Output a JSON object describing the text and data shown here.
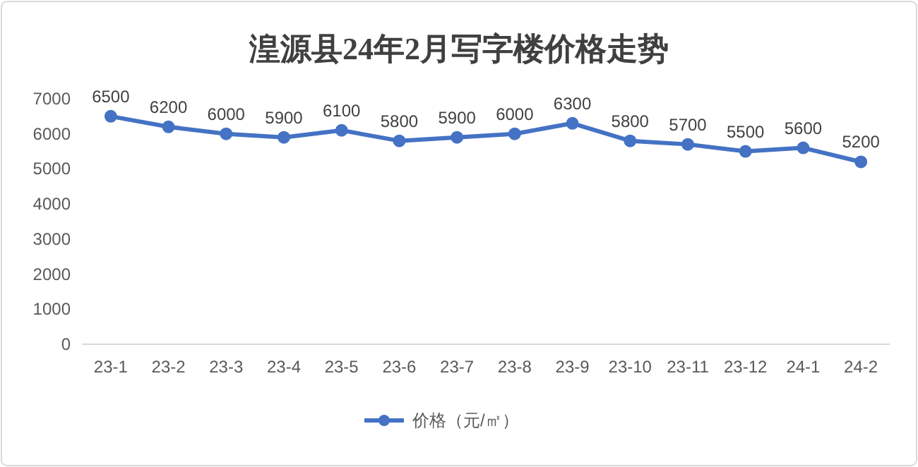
{
  "chart_data": {
    "type": "line",
    "title": "湟源县24年2月写字楼价格走势",
    "categories": [
      "23-1",
      "23-2",
      "23-3",
      "23-4",
      "23-5",
      "23-6",
      "23-7",
      "23-8",
      "23-9",
      "23-10",
      "23-11",
      "23-12",
      "24-1",
      "24-2"
    ],
    "series": [
      {
        "name": "价格（元/㎡）",
        "color": "#4472c4",
        "values": [
          6500,
          6200,
          6000,
          5900,
          6100,
          5800,
          5900,
          6000,
          6300,
          5800,
          5700,
          5500,
          5600,
          5200
        ]
      }
    ],
    "ylim": [
      0,
      7000
    ],
    "yticks": [
      0,
      1000,
      2000,
      3000,
      4000,
      5000,
      6000,
      7000
    ],
    "grid": false,
    "legend": "bottom",
    "marker": "circle",
    "line_style": "solid",
    "data_labels": true
  }
}
